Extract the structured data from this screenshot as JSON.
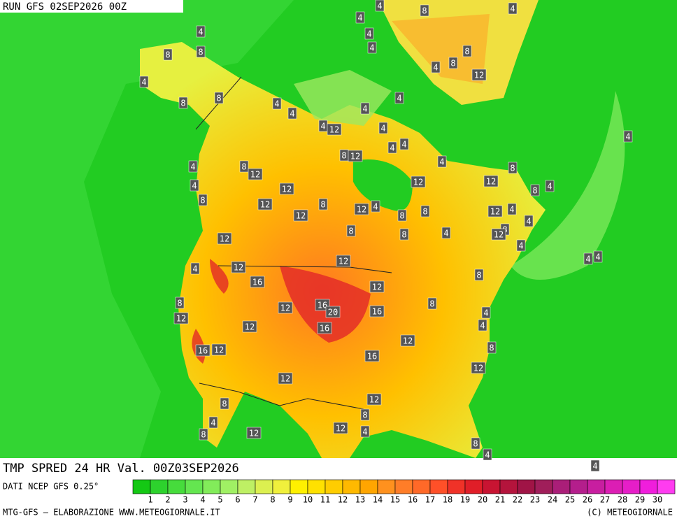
{
  "header": {
    "run": "RUN GFS 02SEP2026 00Z"
  },
  "map": {
    "labels": [
      4,
      4,
      8,
      4,
      4,
      4,
      4,
      8,
      8,
      8,
      8,
      4,
      12,
      4,
      8,
      8,
      4,
      4,
      4,
      4,
      4,
      12,
      4,
      8,
      12,
      4,
      4,
      4,
      8,
      12,
      4,
      8,
      4,
      12,
      12,
      8,
      4,
      4,
      12,
      8,
      12,
      8,
      12,
      4,
      12,
      4,
      8,
      8,
      12,
      4,
      8,
      12,
      8,
      8,
      4,
      12,
      4,
      12,
      12,
      4,
      4,
      4,
      16,
      12,
      8,
      8,
      12,
      16,
      20,
      16,
      8,
      4,
      12,
      12,
      16,
      4,
      12,
      16,
      12,
      8,
      16,
      12,
      12,
      12,
      8,
      8,
      4,
      12,
      12,
      4,
      8,
      8,
      4,
      4
    ]
  },
  "title": "TMP SPRED 24 HR Val. 00Z03SEP2026",
  "legend": {
    "source": "DATI NCEP GFS 0.25°",
    "colors": [
      "#14c814",
      "#2dd22d",
      "#46dc3c",
      "#64e650",
      "#82ec5a",
      "#a0f064",
      "#bef064",
      "#dcf050",
      "#f0f03c",
      "#fff000",
      "#ffe100",
      "#ffcd00",
      "#ffb900",
      "#ffa500",
      "#ff911e",
      "#ff7d28",
      "#ff6928",
      "#ff5028",
      "#f03228",
      "#e01e28",
      "#c81432",
      "#b4143c",
      "#a01446",
      "#a01e5a",
      "#aa1e78",
      "#b41e8c",
      "#c81ea0",
      "#dc1eb4",
      "#e61ec8",
      "#f01edc",
      "#ff3cf0"
    ],
    "ticks": [
      1,
      2,
      3,
      4,
      5,
      6,
      7,
      8,
      9,
      10,
      11,
      12,
      13,
      14,
      15,
      16,
      17,
      18,
      19,
      20,
      21,
      22,
      23,
      24,
      25,
      26,
      27,
      28,
      29,
      30
    ]
  },
  "footer": {
    "left": "MTG-GFS — ELABORAZIONE WWW.METEOGIORNALE.IT",
    "right": "(C) METEOGIORNALE"
  }
}
